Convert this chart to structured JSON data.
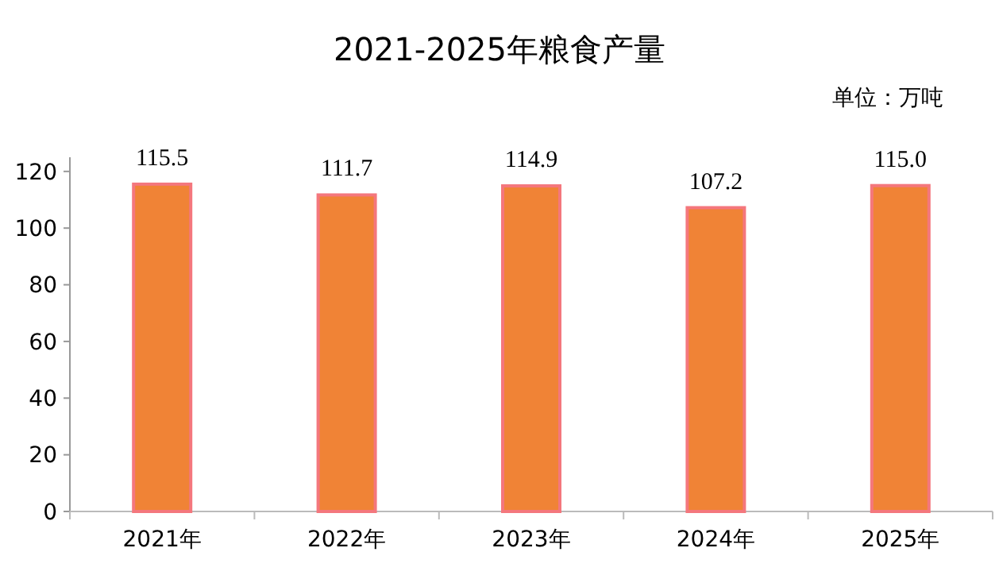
{
  "chart_data": {
    "type": "bar",
    "title": "2021-2025年粮食产量",
    "annotations": [
      "单位：万吨"
    ],
    "categories": [
      "2021年",
      "2022年",
      "2023年",
      "2024年",
      "2025年"
    ],
    "values": [
      115.5,
      111.7,
      114.9,
      107.2,
      115.0
    ],
    "value_labels": [
      "115.5",
      "111.7",
      "114.9",
      "107.2",
      "115.0"
    ],
    "color": "#f08336",
    "ylim": [
      0,
      125
    ],
    "yticks": [
      0,
      20,
      40,
      60,
      80,
      100,
      120
    ],
    "grid": false
  }
}
